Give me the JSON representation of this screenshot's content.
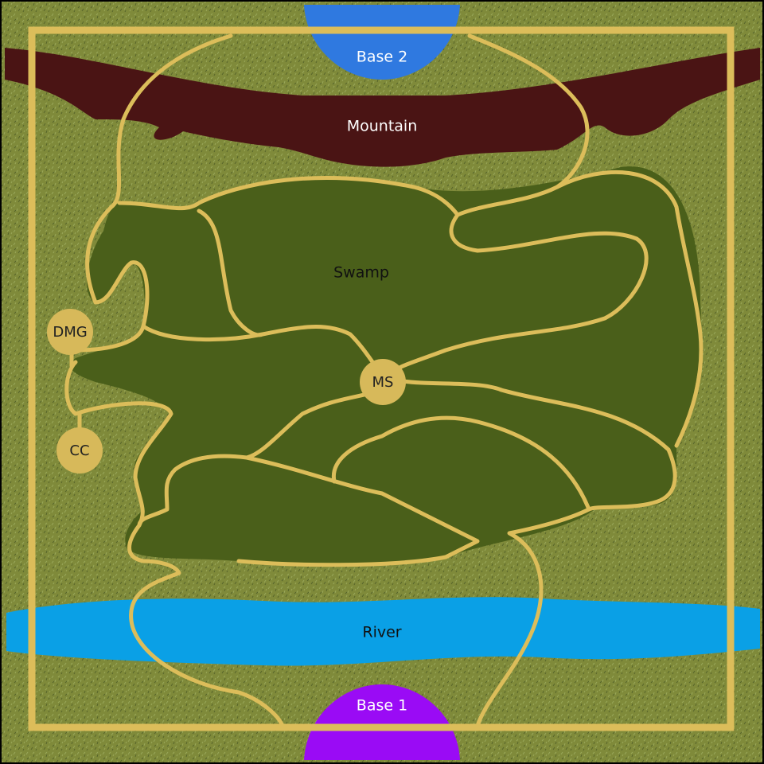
{
  "map": {
    "labels": {
      "base_top": "Base 2",
      "base_bottom": "Base 1",
      "mountain": "Mountain",
      "swamp": "Swamp",
      "river": "River"
    },
    "nodes": {
      "dmg": "DMG",
      "cc": "CC",
      "ms": "MS"
    },
    "colors": {
      "grass": "#7f8a3a",
      "swamp": "#4a5f1a",
      "mountain": "#4a1414",
      "river": "#0aa0e6",
      "base_top": "#2f79e0",
      "base_bottom": "#9a0bf5",
      "path": "#dcbd5a",
      "node": "#d7b95a"
    }
  }
}
